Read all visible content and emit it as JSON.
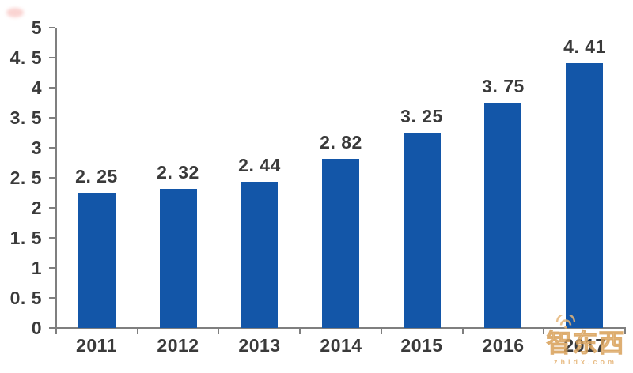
{
  "page": {
    "background": "#FFFFFF"
  },
  "chart_data": {
    "type": "bar",
    "title": "",
    "xlabel": "",
    "ylabel": "",
    "categories": [
      "2011",
      "2012",
      "2013",
      "2014",
      "2015",
      "2016",
      "2017"
    ],
    "values": [
      2.25,
      2.32,
      2.44,
      2.82,
      3.25,
      3.75,
      4.41
    ],
    "value_labels": [
      "2. 25",
      "2. 32",
      "2. 44",
      "2. 82",
      "3. 25",
      "3. 75",
      "4. 41"
    ],
    "ylim": [
      0,
      5
    ],
    "ytick_values": [
      0,
      0.5,
      1,
      1.5,
      2,
      2.5,
      3,
      3.5,
      4,
      4.5,
      5
    ],
    "ytick_labels": [
      "0",
      "0. 5",
      "1",
      "1. 5",
      "2",
      "2. 5",
      "3",
      "3. 5",
      "4",
      "4. 5",
      "5"
    ],
    "grid": "off",
    "legend": "none",
    "bar_color": "#1356A8"
  },
  "colors": {
    "bar": "#1356A8",
    "axis": "#7F7F7F",
    "text": "#3A3A3A",
    "watermark": "#E5B97F"
  },
  "watermark": {
    "brand": "智东西",
    "domain": "zhidx.com"
  }
}
